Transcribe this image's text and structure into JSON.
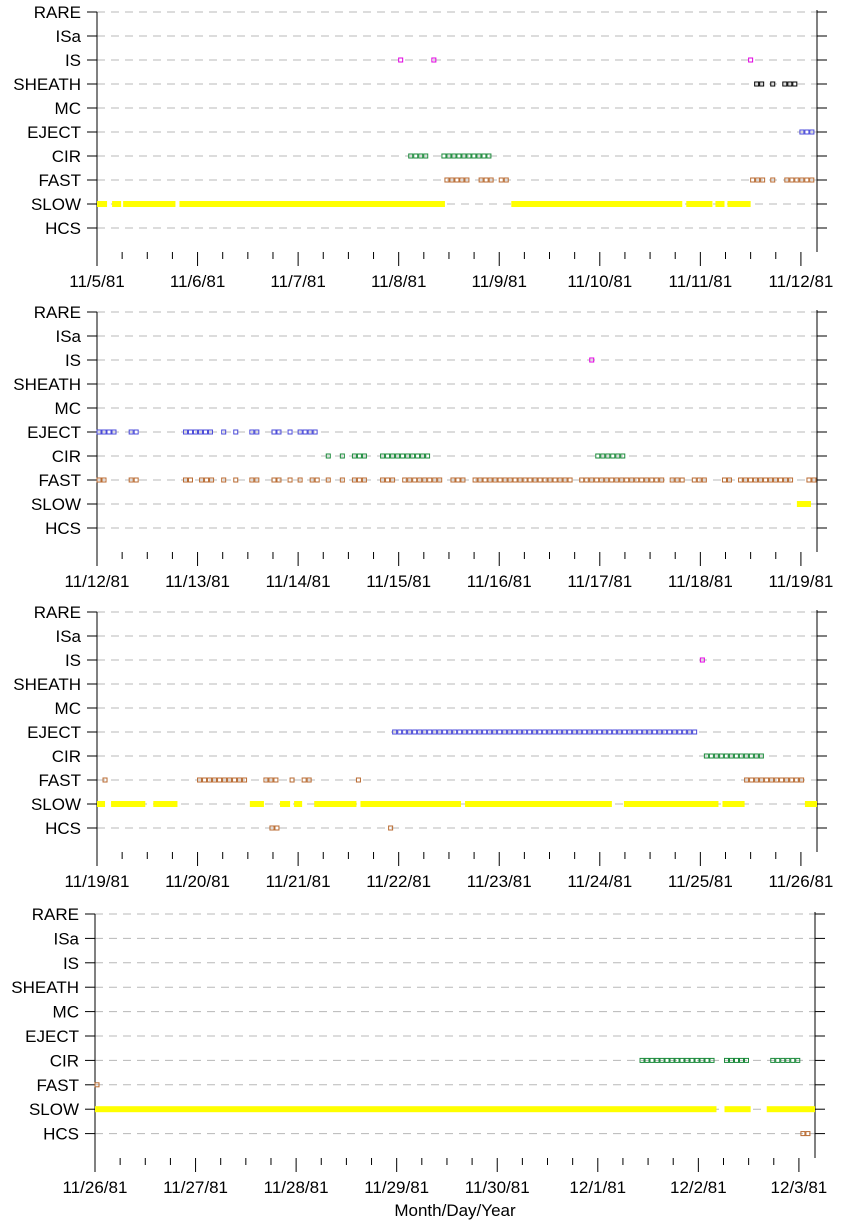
{
  "chart_data": [
    {
      "type": "scatter",
      "categories": [
        "RARE",
        "ISa",
        "IS",
        "SHEATH",
        "MC",
        "EJECT",
        "CIR",
        "FAST",
        "SLOW",
        "HCS"
      ],
      "x_ticks": [
        "11/5/81",
        "11/6/81",
        "11/7/81",
        "11/8/81",
        "11/9/81",
        "11/10/81",
        "11/11/81",
        "11/12/81"
      ],
      "xlim": [
        0,
        7.16
      ],
      "grid": true,
      "series": [
        {
          "category": "IS",
          "segments": [
            [
              3.0,
              3.08
            ],
            [
              3.33,
              3.4
            ],
            [
              6.48,
              6.56
            ]
          ]
        },
        {
          "category": "SHEATH",
          "segments": [
            [
              6.54,
              6.66
            ],
            [
              6.7,
              6.78
            ],
            [
              6.82,
              6.99
            ]
          ]
        },
        {
          "category": "EJECT",
          "segments": [
            [
              6.99,
              7.16
            ]
          ]
        },
        {
          "category": "CIR",
          "segments": [
            [
              3.1,
              3.33
            ],
            [
              3.43,
              3.96
            ]
          ]
        },
        {
          "category": "FAST",
          "segments": [
            [
              3.46,
              3.75
            ],
            [
              3.8,
              3.96
            ],
            [
              4.0,
              4.12
            ],
            [
              6.5,
              6.66
            ],
            [
              6.7,
              6.78
            ],
            [
              6.84,
              7.16
            ]
          ]
        },
        {
          "category": "SLOW",
          "segments": [
            [
              0.0,
              0.1
            ],
            [
              0.15,
              0.24
            ],
            [
              0.26,
              0.78
            ],
            [
              0.82,
              3.46
            ],
            [
              4.12,
              5.82
            ],
            [
              5.86,
              6.12
            ],
            [
              6.15,
              6.24
            ],
            [
              6.27,
              6.5
            ]
          ]
        }
      ]
    },
    {
      "type": "scatter",
      "categories": [
        "RARE",
        "ISa",
        "IS",
        "SHEATH",
        "MC",
        "EJECT",
        "CIR",
        "FAST",
        "SLOW",
        "HCS"
      ],
      "x_ticks": [
        "11/12/81",
        "11/13/81",
        "11/14/81",
        "11/15/81",
        "11/16/81",
        "11/17/81",
        "11/18/81",
        "11/19/81"
      ],
      "xlim": [
        0,
        7.16
      ],
      "grid": true,
      "series": [
        {
          "category": "IS",
          "segments": [
            [
              4.9,
              4.96
            ]
          ]
        },
        {
          "category": "EJECT",
          "segments": [
            [
              0.0,
              0.22
            ],
            [
              0.32,
              0.44
            ],
            [
              0.86,
              1.2
            ],
            [
              1.24,
              1.32
            ],
            [
              1.36,
              1.44
            ],
            [
              1.52,
              1.66
            ],
            [
              1.74,
              1.86
            ],
            [
              1.9,
              1.96
            ],
            [
              2.0,
              2.24
            ]
          ]
        },
        {
          "category": "CIR",
          "segments": [
            [
              2.28,
              2.36
            ],
            [
              2.42,
              2.5
            ],
            [
              2.54,
              2.7
            ],
            [
              2.82,
              3.36
            ],
            [
              4.96,
              5.3
            ]
          ]
        },
        {
          "category": "FAST",
          "segments": [
            [
              0.0,
              0.14
            ],
            [
              0.32,
              0.44
            ],
            [
              0.86,
              0.98
            ],
            [
              1.02,
              1.2
            ],
            [
              1.24,
              1.32
            ],
            [
              1.36,
              1.44
            ],
            [
              1.52,
              1.66
            ],
            [
              1.74,
              1.86
            ],
            [
              1.9,
              1.96
            ],
            [
              2.0,
              2.06
            ],
            [
              2.12,
              2.24
            ],
            [
              2.28,
              2.36
            ],
            [
              2.42,
              2.5
            ],
            [
              2.54,
              2.7
            ],
            [
              2.82,
              3.0
            ],
            [
              3.04,
              3.46
            ],
            [
              3.52,
              3.7
            ],
            [
              3.74,
              4.76
            ],
            [
              4.8,
              5.66
            ],
            [
              5.7,
              5.86
            ],
            [
              5.92,
              6.1
            ],
            [
              6.22,
              6.34
            ],
            [
              6.38,
              6.96
            ],
            [
              7.06,
              7.16
            ]
          ]
        },
        {
          "category": "SLOW",
          "segments": [
            [
              6.96,
              7.1
            ]
          ]
        }
      ]
    },
    {
      "type": "scatter",
      "categories": [
        "RARE",
        "ISa",
        "IS",
        "SHEATH",
        "MC",
        "EJECT",
        "CIR",
        "FAST",
        "SLOW",
        "HCS"
      ],
      "x_ticks": [
        "11/19/81",
        "11/20/81",
        "11/21/81",
        "11/22/81",
        "11/23/81",
        "11/24/81",
        "11/25/81",
        "11/26/81"
      ],
      "xlim": [
        0,
        7.16
      ],
      "grid": true,
      "series": [
        {
          "category": "IS",
          "segments": [
            [
              6.0,
              6.06
            ]
          ]
        },
        {
          "category": "EJECT",
          "segments": [
            [
              2.94,
              6.0
            ]
          ]
        },
        {
          "category": "CIR",
          "segments": [
            [
              6.04,
              6.64
            ]
          ]
        },
        {
          "category": "FAST",
          "segments": [
            [
              0.06,
              0.14
            ],
            [
              1.0,
              1.54
            ],
            [
              1.66,
              1.84
            ],
            [
              1.92,
              1.98
            ],
            [
              2.04,
              2.16
            ],
            [
              2.58,
              2.64
            ],
            [
              6.44,
              7.04
            ]
          ]
        },
        {
          "category": "SLOW",
          "segments": [
            [
              0.0,
              0.08
            ],
            [
              0.14,
              0.48
            ],
            [
              0.56,
              0.8
            ],
            [
              1.52,
              1.66
            ],
            [
              1.82,
              1.92
            ],
            [
              1.96,
              2.04
            ],
            [
              2.16,
              2.58
            ],
            [
              2.62,
              3.62
            ],
            [
              3.66,
              5.12
            ],
            [
              5.24,
              6.18
            ],
            [
              6.22,
              6.44
            ],
            [
              7.04,
              7.16
            ]
          ]
        },
        {
          "category": "HCS",
          "segments": [
            [
              1.72,
              1.86
            ],
            [
              2.9,
              2.96
            ]
          ]
        }
      ]
    },
    {
      "type": "scatter",
      "categories": [
        "RARE",
        "ISa",
        "IS",
        "SHEATH",
        "MC",
        "EJECT",
        "CIR",
        "FAST",
        "SLOW",
        "HCS"
      ],
      "x_ticks": [
        "11/26/81",
        "11/27/81",
        "11/28/81",
        "11/29/81",
        "11/30/81",
        "12/1/81",
        "12/2/81",
        "12/3/81"
      ],
      "xlim": [
        0,
        7.16
      ],
      "grid": true,
      "xlabel": "Month/Day/Year",
      "series": [
        {
          "category": "FAST",
          "segments": [
            [
              0.0,
              0.02
            ]
          ]
        },
        {
          "category": "CIR",
          "segments": [
            [
              5.42,
              6.18
            ],
            [
              6.26,
              6.52
            ],
            [
              6.72,
              7.02
            ]
          ]
        },
        {
          "category": "SLOW",
          "segments": [
            [
              0.0,
              6.18
            ],
            [
              6.26,
              6.52
            ],
            [
              6.68,
              7.16
            ]
          ]
        },
        {
          "category": "HCS",
          "segments": [
            [
              7.02,
              7.16
            ]
          ]
        }
      ]
    }
  ],
  "colors": {
    "IS": "#e000e0",
    "SHEATH": "#000000",
    "EJECT": "#4a4ad8",
    "CIR": "#1a8a3a",
    "FAST": "#b86a30",
    "SLOW": "#ffff00",
    "HCS": "#b86a30",
    "grid": "#b8b8b8",
    "axis": "#000000"
  }
}
